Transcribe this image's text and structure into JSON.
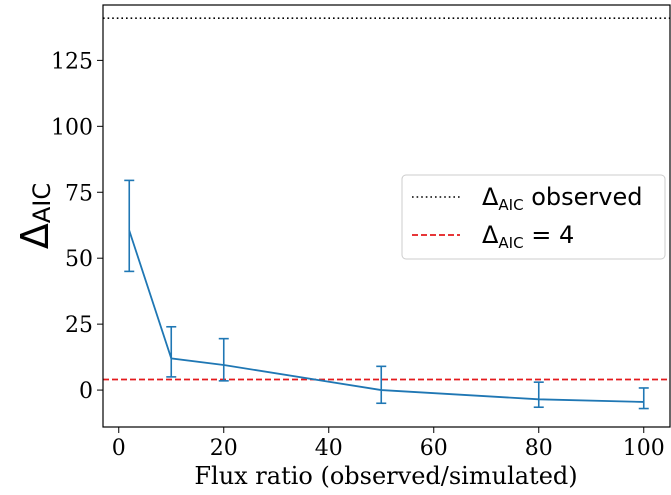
{
  "chart_data": {
    "type": "line",
    "title": "",
    "xlabel": "Flux ratio (observed/simulated)",
    "ylabel": {
      "main": "Δ",
      "sub": "AIC"
    },
    "xlim": [
      -3,
      105
    ],
    "ylim": [
      -14,
      146
    ],
    "x_ticks": [
      0,
      20,
      40,
      60,
      80,
      100
    ],
    "y_ticks": [
      0,
      25,
      50,
      75,
      100,
      125
    ],
    "grid": false,
    "legend_position": "center-right",
    "series": [
      {
        "x": [
          2,
          10,
          20,
          50,
          80,
          100
        ],
        "y": [
          60.5,
          12,
          9.5,
          0,
          -3.5,
          -4.5
        ],
        "yerr_low": [
          45,
          5,
          3.5,
          -5,
          -6.5,
          -7
        ],
        "yerr_high": [
          79.5,
          24,
          19.5,
          9,
          3,
          0.8
        ],
        "color": "#1f77b4"
      }
    ],
    "hlines": [
      {
        "y": 141,
        "style": "dotted",
        "color": "#000000",
        "legend": {
          "main": "Δ",
          "sub": "AIC",
          "rest": " observed"
        }
      },
      {
        "y": 4,
        "style": "dashed",
        "color": "#e41a1c",
        "legend": {
          "main": "Δ",
          "sub": "AIC",
          "rest": " = 4"
        }
      }
    ]
  }
}
